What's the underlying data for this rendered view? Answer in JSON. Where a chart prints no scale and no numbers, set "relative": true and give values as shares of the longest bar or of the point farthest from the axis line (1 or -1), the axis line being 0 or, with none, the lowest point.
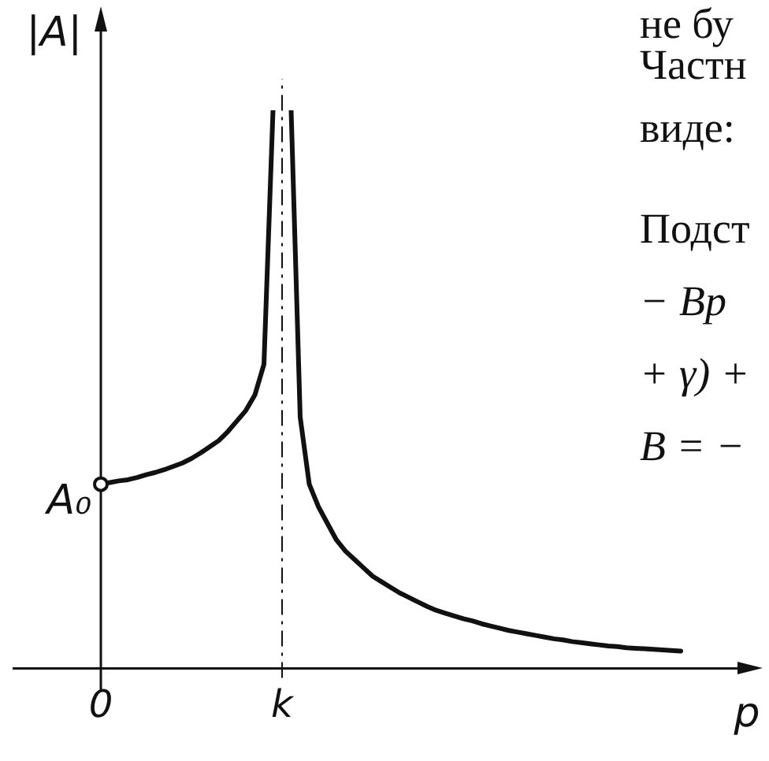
{
  "chart_data": {
    "type": "line",
    "relative": true,
    "xlabel": "p",
    "ylabel": "|A|",
    "grid": false,
    "legend": false,
    "marker": "none",
    "line_style": "solid",
    "categories": [
      "0",
      null,
      null,
      null,
      null,
      null,
      null,
      null,
      null,
      null,
      null,
      null,
      null,
      null,
      null,
      null,
      null,
      null,
      null,
      null,
      "k",
      null,
      null,
      null,
      null,
      null,
      null,
      null,
      null,
      null,
      null,
      null,
      null,
      null,
      null,
      null,
      null,
      null,
      null,
      null,
      null,
      null,
      null,
      null,
      null,
      null,
      null,
      null,
      null,
      null,
      null,
      null,
      null,
      null,
      null,
      null,
      null,
      null,
      null,
      null,
      null,
      null,
      null,
      null,
      null,
      null,
      null,
      null,
      null,
      null,
      null,
      null,
      null
    ],
    "series": [
      {
        "color": "#111111",
        "values": [
          0.33,
          0.333,
          0.336,
          0.338,
          0.342,
          0.347,
          0.351,
          0.356,
          0.362,
          0.368,
          0.376,
          0.386,
          0.397,
          0.408,
          0.424,
          0.443,
          0.462,
          0.49,
          0.545,
          1,
          null,
          null,
          null,
          null,
          null,
          null,
          null,
          null,
          null,
          null,
          null,
          null,
          null,
          null,
          null,
          null,
          null,
          null,
          null,
          null,
          null,
          null,
          null,
          null,
          null,
          null,
          null,
          null,
          null,
          null,
          null,
          null,
          null,
          null,
          null,
          null,
          null,
          null,
          null,
          null,
          null,
          null,
          null,
          null,
          null,
          null,
          null,
          null,
          null,
          null,
          null,
          null,
          null
        ]
      },
      {
        "color": "#111111",
        "values": [
          null,
          null,
          null,
          null,
          null,
          null,
          null,
          null,
          null,
          null,
          null,
          null,
          null,
          null,
          null,
          null,
          null,
          null,
          null,
          null,
          null,
          1,
          0.45,
          0.33,
          0.29,
          0.26,
          0.23,
          0.21,
          0.195,
          0.18,
          0.165,
          0.155,
          0.145,
          0.135,
          0.127,
          0.119,
          0.111,
          0.104,
          0.099,
          0.094,
          0.089,
          0.085,
          0.08,
          0.076,
          0.072,
          0.068,
          0.065,
          0.062,
          0.059,
          0.056,
          0.053,
          0.051,
          0.048,
          0.046,
          0.044,
          0.042,
          0.04,
          0.039,
          0.037,
          0.036,
          0.035,
          0.034,
          0.033,
          0.032,
          0.031,
          null,
          null,
          null,
          null,
          null,
          null,
          null,
          null
        ]
      }
    ],
    "ref_lines": [
      {
        "axis": "x",
        "value": "k",
        "line_style": "dashed",
        "color": "#111111"
      }
    ],
    "annotations": [
      {
        "text": "A₀",
        "x": "0",
        "y": 0.33
      },
      "не бу",
      "Частн",
      "виде:",
      "Подст",
      "− Bp",
      "+ γ) +",
      "B = −"
    ]
  }
}
